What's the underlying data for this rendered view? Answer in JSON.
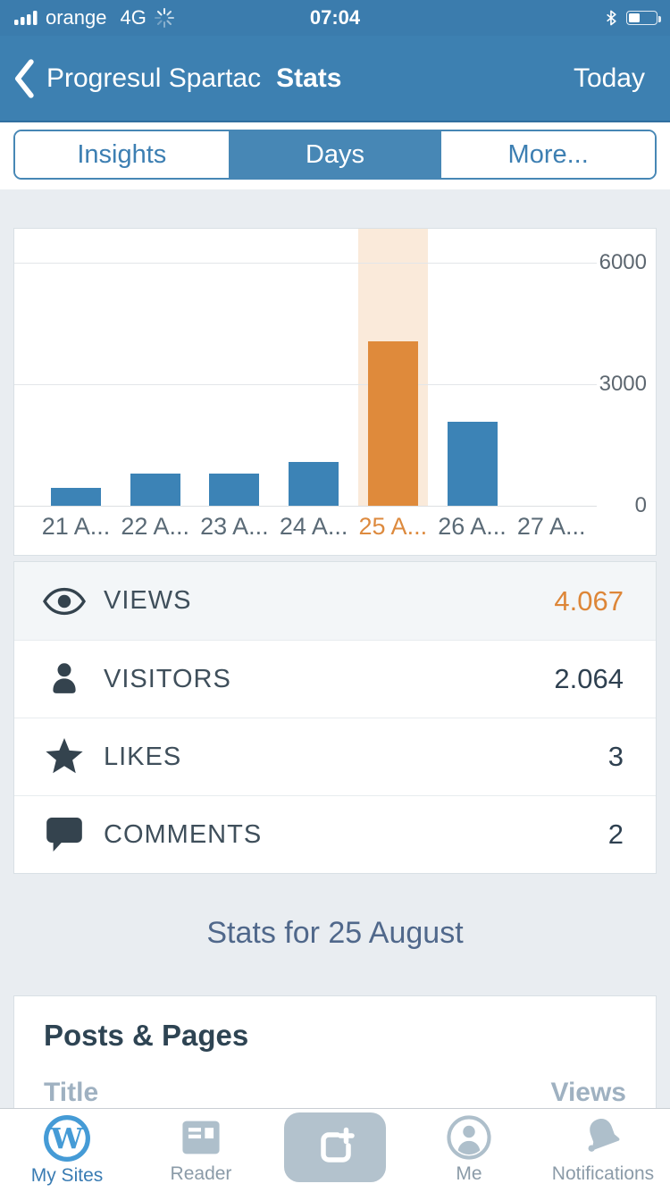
{
  "status_bar": {
    "carrier": "orange",
    "network": "4G",
    "time": "07:04",
    "battery_percent": 40
  },
  "nav": {
    "back_label": "Progresul Spartac",
    "title": "Stats",
    "right_action": "Today"
  },
  "tabs": [
    {
      "label": "Insights",
      "selected": false
    },
    {
      "label": "Days",
      "selected": true
    },
    {
      "label": "More...",
      "selected": false
    }
  ],
  "chart_data": {
    "type": "bar",
    "title": "",
    "xlabel": "",
    "ylabel": "",
    "categories": [
      "21 A...",
      "22 A...",
      "23 A...",
      "24 A...",
      "25 A...",
      "26 A...",
      "27 A..."
    ],
    "values": [
      450,
      800,
      800,
      1080,
      4067,
      2070,
      0
    ],
    "selected_index": 4,
    "selected_category": "25 A...",
    "selected_value": 4067,
    "yticks": [
      0,
      3000,
      6000
    ],
    "ylim": [
      0,
      6850
    ],
    "grid": true,
    "legend": false,
    "bar_color": "#3c83b6",
    "selected_bar_color": "#df8a3b",
    "selected_column_color": "#faeada"
  },
  "summary_rows": [
    {
      "icon": "eye-icon",
      "label": "VIEWS",
      "value": "4.067"
    },
    {
      "icon": "person-icon",
      "label": "VISITORS",
      "value": "2.064"
    },
    {
      "icon": "star-icon",
      "label": "LIKES",
      "value": "3"
    },
    {
      "icon": "comment-icon",
      "label": "COMMENTS",
      "value": "2"
    }
  ],
  "section_heading": "Stats for 25 August",
  "posts_pages": {
    "heading": "Posts & Pages",
    "col_title": "Title",
    "col_views": "Views"
  },
  "tab_bar": {
    "my_sites": "My Sites",
    "reader": "Reader",
    "me": "Me",
    "notifications": "Notifications"
  },
  "colors": {
    "header_blue": "#3d80b1",
    "segment_blue": "#4787b5",
    "page_bg": "#e9edf1",
    "orange_accent": "#dd8638",
    "dark_slate": "#2e4453",
    "muted_header": "#9fb1c1",
    "tab_inactive": "#aebfcb",
    "tab_active": "#3a7cb3"
  }
}
